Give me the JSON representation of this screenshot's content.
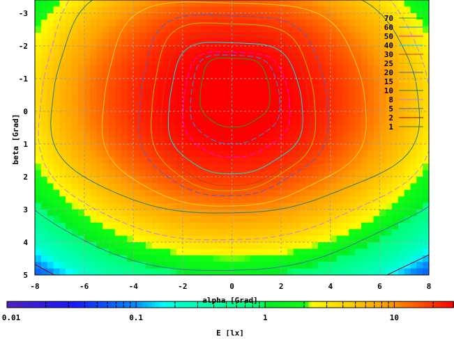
{
  "chart_data": {
    "type": "heatmap",
    "title": "",
    "xlabel": "alpha [Grad]",
    "ylabel": "beta [Grad]",
    "xlim": [
      -8,
      8
    ],
    "ylim": [
      -3.4,
      5
    ],
    "y_reversed": true,
    "xticks": [
      "-8",
      "-6",
      "-4",
      "-2",
      "0",
      "2",
      "4",
      "6",
      "8"
    ],
    "xtick_values": [
      -8,
      -6,
      -4,
      -2,
      0,
      2,
      4,
      6,
      8
    ],
    "yticks": [
      "-3",
      "-2",
      "-1",
      "0",
      "1",
      "2",
      "3",
      "4",
      "5"
    ],
    "ytick_values": [
      -3,
      -2,
      -1,
      0,
      1,
      2,
      3,
      4,
      5
    ],
    "grid": true,
    "field_model": {
      "peak": 32,
      "center": [
        0,
        -0.4
      ],
      "scale": [
        8,
        4.5
      ],
      "decay": 2.2,
      "power": 2.4
    },
    "colorbar": {
      "label": "E [lx]",
      "scale": "log",
      "range": [
        0.01,
        29
      ],
      "ticks": [
        "0.01",
        "0.1",
        "1",
        "10"
      ],
      "tick_values": [
        0.01,
        0.1,
        1,
        10
      ],
      "stops": [
        {
          "t": 0.0,
          "color": "#5020c0"
        },
        {
          "t": 0.15,
          "color": "#1818ff"
        },
        {
          "t": 0.29,
          "color": "#0090ff"
        },
        {
          "t": 0.35,
          "color": "#00ffff"
        },
        {
          "t": 0.38,
          "color": "#00ffcc"
        },
        {
          "t": 0.57,
          "color": "#00ff70"
        },
        {
          "t": 0.58,
          "color": "#00ee22"
        },
        {
          "t": 0.67,
          "color": "#10ff10"
        },
        {
          "t": 0.68,
          "color": "#ffff00"
        },
        {
          "t": 0.85,
          "color": "#ffa000"
        },
        {
          "t": 1.0,
          "color": "#ff0000"
        }
      ]
    },
    "legend_position": "top-right",
    "contours": [
      {
        "level": "70",
        "color": "#20a020",
        "center": [
          0.1,
          -0.6
        ],
        "radii": [
          1.4,
          1.05
        ],
        "dash": false
      },
      {
        "level": "60",
        "color": "#1e90ff",
        "center": [
          0.1,
          -0.4
        ],
        "radii": [
          1.8,
          1.35
        ],
        "dash": true
      },
      {
        "level": "50",
        "color": "#ff00ff",
        "center": [
          0.15,
          -0.25
        ],
        "radii": [
          2.15,
          1.6
        ],
        "dash": true
      },
      {
        "level": "40",
        "color": "#00e5ee",
        "center": [
          0.1,
          -0.15
        ],
        "radii": [
          2.7,
          2.0
        ],
        "dash": false
      },
      {
        "level": "30",
        "color": "#c04020",
        "center": [
          0.1,
          -0.1
        ],
        "radii": [
          3.0,
          2.3
        ],
        "dash": false
      },
      {
        "level": "25",
        "color": "#b0c000",
        "center": [
          0,
          -0.2
        ],
        "radii": [
          3.3,
          2.55
        ],
        "dash": false
      },
      {
        "level": "20",
        "color": "#4060e0",
        "center": [
          0,
          -0.25
        ],
        "radii": [
          3.8,
          2.75
        ],
        "dash": true
      },
      {
        "level": "15",
        "color": "#ffd020",
        "center": [
          0,
          -0.3
        ],
        "radii": [
          5.3,
          3.1
        ],
        "dash": false
      },
      {
        "level": "10",
        "color": "#208060",
        "center": [
          0,
          -0.5
        ],
        "radii": [
          7.4,
          3.5
        ],
        "dash": false
      },
      {
        "level": "8",
        "color": "#c080ff",
        "center": [
          0,
          -0.4
        ],
        "radii": [
          7.9,
          4.2
        ],
        "dash": true
      },
      {
        "level": "5",
        "color": "#4070a0",
        "center": [
          0,
          -0.6
        ],
        "radii": [
          9.5,
          5.3
        ],
        "dash": false
      },
      {
        "level": "2",
        "color": "#a00000",
        "center": [
          0,
          -0.6
        ],
        "radii": [
          11.5,
          6.5
        ],
        "dash": false
      },
      {
        "level": "1",
        "color": "#3a7a10",
        "center": [
          0,
          -0.6
        ],
        "radii": [
          12.5,
          7.0
        ],
        "dash": false
      }
    ]
  }
}
